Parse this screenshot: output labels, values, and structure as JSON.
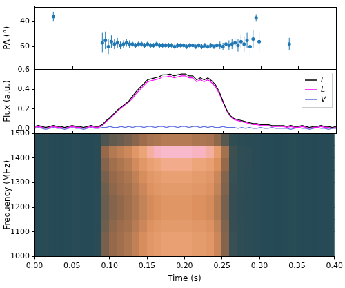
{
  "chart_data": [
    {
      "type": "scatter",
      "y_label": "PA (°)",
      "color": "#1f77b4",
      "marker": "circle",
      "tick_labels": "y",
      "x": [
        0.025,
        0.09,
        0.094,
        0.098,
        0.102,
        0.106,
        0.11,
        0.114,
        0.118,
        0.122,
        0.126,
        0.13,
        0.134,
        0.138,
        0.142,
        0.146,
        0.15,
        0.154,
        0.158,
        0.162,
        0.166,
        0.17,
        0.174,
        0.178,
        0.182,
        0.186,
        0.19,
        0.194,
        0.198,
        0.202,
        0.206,
        0.21,
        0.214,
        0.218,
        0.222,
        0.226,
        0.23,
        0.234,
        0.238,
        0.242,
        0.246,
        0.25,
        0.254,
        0.258,
        0.262,
        0.266,
        0.27,
        0.274,
        0.278,
        0.282,
        0.286,
        0.29,
        0.294,
        0.298,
        0.338
      ],
      "values": [
        -36,
        -57,
        -55,
        -60,
        -56,
        -58,
        -57,
        -59,
        -58,
        -57,
        -58,
        -58,
        -59,
        -58,
        -58,
        -59,
        -58,
        -59,
        -59,
        -58,
        -59,
        -59,
        -59,
        -59,
        -59,
        -60,
        -59,
        -59,
        -59,
        -60,
        -59,
        -59,
        -60,
        -59,
        -60,
        -59,
        -60,
        -59,
        -60,
        -59,
        -59,
        -60,
        -58,
        -59,
        -58,
        -57,
        -59,
        -56,
        -58,
        -55,
        -60,
        -54,
        -37,
        -56,
        -58
      ],
      "errors": [
        4,
        8,
        7,
        6,
        5,
        4,
        4,
        3,
        3,
        3,
        3,
        2,
        2,
        2,
        2,
        2,
        2,
        2,
        2,
        2,
        2,
        2,
        2,
        2,
        2,
        2,
        2,
        2,
        2,
        2,
        2,
        2,
        2,
        2,
        2,
        2,
        2,
        2,
        2,
        2,
        3,
        3,
        3,
        4,
        4,
        4,
        5,
        5,
        6,
        6,
        7,
        7,
        3,
        8,
        5
      ],
      "xlim": [
        0,
        0.4
      ],
      "xticks": [
        {
          "value": 0,
          "label": "0.00"
        },
        0.05,
        {
          "value": 0.1,
          "label": "0.10"
        },
        0.15,
        {
          "value": 0.2,
          "label": "0.20"
        },
        0.25,
        {
          "value": 0.3,
          "label": "0.30"
        },
        0.35,
        {
          "value": 0.4,
          "label": "0.40"
        }
      ],
      "ylim": [
        -78,
        -28
      ],
      "yticks": [
        {
          "value": -60,
          "label": "−60"
        },
        {
          "value": -40,
          "label": "−40"
        }
      ]
    },
    {
      "type": "line",
      "y_label": "Flux (a.u.)",
      "legend": "upper right",
      "tick_labels": "y",
      "x": [
        0,
        0.005,
        0.01,
        0.015,
        0.02,
        0.025,
        0.03,
        0.035,
        0.04,
        0.045,
        0.05,
        0.055,
        0.06,
        0.065,
        0.07,
        0.075,
        0.08,
        0.085,
        0.09,
        0.095,
        0.1,
        0.105,
        0.11,
        0.115,
        0.12,
        0.125,
        0.13,
        0.135,
        0.14,
        0.145,
        0.15,
        0.155,
        0.16,
        0.165,
        0.17,
        0.175,
        0.18,
        0.185,
        0.19,
        0.195,
        0.2,
        0.205,
        0.21,
        0.215,
        0.22,
        0.225,
        0.23,
        0.235,
        0.24,
        0.245,
        0.25,
        0.255,
        0.26,
        0.265,
        0.27,
        0.275,
        0.28,
        0.285,
        0.29,
        0.295,
        0.3,
        0.305,
        0.31,
        0.315,
        0.32,
        0.325,
        0.33,
        0.335,
        0.34,
        0.345,
        0.35,
        0.355,
        0.36,
        0.365,
        0.37,
        0.375,
        0.38,
        0.385,
        0.39,
        0.395,
        0.4
      ],
      "series": [
        {
          "name": "I",
          "color": "#000000",
          "values": [
            0.02,
            0.03,
            0.02,
            0.01,
            0.02,
            0.03,
            0.02,
            0.02,
            0.01,
            0.02,
            0.03,
            0.02,
            0.02,
            0.01,
            0.02,
            0.03,
            0.02,
            0.02,
            0.04,
            0.08,
            0.11,
            0.15,
            0.19,
            0.22,
            0.25,
            0.28,
            0.33,
            0.38,
            0.42,
            0.46,
            0.5,
            0.51,
            0.52,
            0.53,
            0.55,
            0.55,
            0.56,
            0.54,
            0.55,
            0.56,
            0.56,
            0.54,
            0.54,
            0.5,
            0.52,
            0.5,
            0.52,
            0.49,
            0.45,
            0.38,
            0.28,
            0.19,
            0.13,
            0.1,
            0.09,
            0.08,
            0.07,
            0.06,
            0.05,
            0.05,
            0.04,
            0.04,
            0.04,
            0.03,
            0.03,
            0.03,
            0.03,
            0.02,
            0.03,
            0.02,
            0.02,
            0.03,
            0.02,
            0.01,
            0.02,
            0.02,
            0.03,
            0.02,
            0.02,
            0.01,
            0.02
          ]
        },
        {
          "name": "L",
          "color": "#ff00ff",
          "values": [
            0.01,
            0.02,
            0.01,
            0,
            0.01,
            0.02,
            0.01,
            0.01,
            0,
            0.01,
            0.02,
            0.01,
            0.01,
            0,
            0.01,
            0.02,
            0.01,
            0.01,
            0.03,
            0.07,
            0.1,
            0.14,
            0.18,
            0.21,
            0.24,
            0.27,
            0.31,
            0.36,
            0.4,
            0.44,
            0.48,
            0.49,
            0.5,
            0.51,
            0.53,
            0.53,
            0.54,
            0.52,
            0.53,
            0.54,
            0.54,
            0.52,
            0.52,
            0.48,
            0.5,
            0.48,
            0.5,
            0.47,
            0.43,
            0.36,
            0.27,
            0.18,
            0.12,
            0.09,
            0.08,
            0.07,
            0.06,
            0.05,
            0.04,
            0.04,
            0.03,
            0.03,
            0.03,
            0.02,
            0.02,
            0.02,
            0.02,
            0.01,
            0.02,
            0.01,
            0.01,
            0.02,
            0.01,
            0,
            0.01,
            0.01,
            0.02,
            0.01,
            0.01,
            0,
            0.01
          ]
        },
        {
          "name": "V",
          "color": "#5f6fe0",
          "values": [
            0,
            0.01,
            0,
            -0.01,
            0,
            0.01,
            0,
            0,
            -0.01,
            0,
            0.01,
            0,
            0,
            -0.01,
            0,
            0.01,
            0,
            0,
            0.01,
            0.01,
            0.02,
            0.01,
            0.01,
            0.02,
            0.01,
            0.02,
            0.01,
            0.02,
            0.02,
            0.01,
            0.02,
            0.02,
            0.01,
            0.02,
            0.02,
            0.01,
            0.02,
            0.02,
            0.01,
            0.02,
            0.02,
            0.01,
            0.02,
            0.02,
            0.01,
            0.02,
            0.01,
            0.02,
            0.01,
            0.01,
            0.02,
            0.01,
            0.01,
            0.01,
            0,
            0.01,
            0,
            0.01,
            0,
            0,
            0.01,
            0,
            0,
            0.01,
            0,
            0,
            0,
            0,
            -0.01,
            0,
            0.01,
            0,
            0,
            -0.01,
            0,
            0.01,
            0,
            0,
            -0.01,
            0,
            0
          ]
        }
      ],
      "xlim": [
        0,
        0.4
      ],
      "xticks": [
        {
          "value": 0,
          "label": "0.00"
        },
        0.05,
        {
          "value": 0.1,
          "label": "0.10"
        },
        0.15,
        {
          "value": 0.2,
          "label": "0.20"
        },
        0.25,
        {
          "value": 0.3,
          "label": "0.30"
        },
        0.35,
        {
          "value": 0.4,
          "label": "0.40"
        }
      ],
      "ylim": [
        -0.05,
        0.61
      ],
      "yticks": [
        {
          "value": 0,
          "label": "0.0"
        },
        0.2,
        0.4,
        0.6
      ]
    },
    {
      "type": "heatmap",
      "x_label": "Time (s)",
      "y_label": "Frequency (MHz)",
      "x": [
        0.005,
        0.015,
        0.025,
        0.035,
        0.045,
        0.055,
        0.065,
        0.075,
        0.085,
        0.095,
        0.105,
        0.115,
        0.125,
        0.135,
        0.145,
        0.155,
        0.165,
        0.175,
        0.185,
        0.195,
        0.205,
        0.215,
        0.225,
        0.235,
        0.245,
        0.255,
        0.265,
        0.275,
        0.285,
        0.295,
        0.305,
        0.315,
        0.325,
        0.335,
        0.345,
        0.355,
        0.365,
        0.375,
        0.385,
        0.395
      ],
      "y": [
        1025,
        1075,
        1125,
        1175,
        1225,
        1275,
        1325,
        1375,
        1425,
        1475
      ],
      "cells": [
        [
          0.05,
          0.06,
          0.05,
          0.04,
          0.05,
          0.06,
          0.05,
          0.05,
          0.06,
          0.28,
          0.35,
          0.39,
          0.43,
          0.5,
          0.58,
          0.65,
          0.69,
          0.73,
          0.73,
          0.73,
          0.73,
          0.69,
          0.69,
          0.65,
          0.54,
          0.31,
          0.13,
          0.09,
          0.07,
          0.06,
          0.05,
          0.05,
          0.04,
          0.05,
          0.06,
          0.05,
          0.05,
          0.04,
          0.05,
          0.05
        ],
        [
          0.05,
          0.06,
          0.05,
          0.04,
          0.05,
          0.06,
          0.05,
          0.05,
          0.06,
          0.28,
          0.35,
          0.39,
          0.43,
          0.5,
          0.58,
          0.65,
          0.69,
          0.73,
          0.73,
          0.73,
          0.73,
          0.69,
          0.69,
          0.65,
          0.54,
          0.31,
          0.13,
          0.09,
          0.07,
          0.06,
          0.05,
          0.05,
          0.04,
          0.05,
          0.06,
          0.05,
          0.05,
          0.04,
          0.05,
          0.05
        ],
        [
          0.05,
          0.06,
          0.05,
          0.04,
          0.05,
          0.06,
          0.05,
          0.05,
          0.06,
          0.26,
          0.33,
          0.37,
          0.4,
          0.47,
          0.54,
          0.61,
          0.65,
          0.68,
          0.68,
          0.68,
          0.68,
          0.65,
          0.65,
          0.61,
          0.51,
          0.3,
          0.12,
          0.09,
          0.07,
          0.06,
          0.05,
          0.05,
          0.04,
          0.05,
          0.06,
          0.05,
          0.05,
          0.04,
          0.05,
          0.05
        ],
        [
          0.05,
          0.06,
          0.05,
          0.04,
          0.05,
          0.06,
          0.05,
          0.05,
          0.06,
          0.25,
          0.31,
          0.34,
          0.38,
          0.44,
          0.51,
          0.57,
          0.6,
          0.64,
          0.64,
          0.64,
          0.64,
          0.6,
          0.6,
          0.57,
          0.47,
          0.28,
          0.12,
          0.08,
          0.07,
          0.06,
          0.05,
          0.05,
          0.04,
          0.05,
          0.06,
          0.05,
          0.05,
          0.04,
          0.05,
          0.05
        ],
        [
          0.05,
          0.06,
          0.05,
          0.04,
          0.05,
          0.06,
          0.05,
          0.05,
          0.06,
          0.25,
          0.31,
          0.34,
          0.38,
          0.44,
          0.51,
          0.57,
          0.6,
          0.64,
          0.64,
          0.64,
          0.64,
          0.6,
          0.6,
          0.57,
          0.47,
          0.28,
          0.12,
          0.08,
          0.07,
          0.06,
          0.05,
          0.05,
          0.04,
          0.05,
          0.06,
          0.05,
          0.05,
          0.04,
          0.05,
          0.05
        ],
        [
          0.05,
          0.06,
          0.05,
          0.04,
          0.05,
          0.06,
          0.05,
          0.05,
          0.06,
          0.26,
          0.33,
          0.37,
          0.4,
          0.47,
          0.54,
          0.61,
          0.65,
          0.68,
          0.68,
          0.68,
          0.68,
          0.65,
          0.65,
          0.61,
          0.51,
          0.3,
          0.12,
          0.09,
          0.07,
          0.06,
          0.05,
          0.05,
          0.04,
          0.05,
          0.06,
          0.05,
          0.05,
          0.04,
          0.05,
          0.05
        ],
        [
          0.05,
          0.06,
          0.05,
          0.04,
          0.05,
          0.06,
          0.05,
          0.05,
          0.06,
          0.28,
          0.35,
          0.39,
          0.43,
          0.5,
          0.58,
          0.65,
          0.69,
          0.73,
          0.73,
          0.73,
          0.73,
          0.69,
          0.69,
          0.65,
          0.54,
          0.31,
          0.13,
          0.09,
          0.07,
          0.06,
          0.05,
          0.05,
          0.04,
          0.05,
          0.06,
          0.05,
          0.05,
          0.04,
          0.05,
          0.05
        ],
        [
          0.05,
          0.06,
          0.05,
          0.04,
          0.05,
          0.06,
          0.05,
          0.05,
          0.06,
          0.31,
          0.39,
          0.43,
          0.48,
          0.56,
          0.65,
          0.73,
          0.77,
          0.82,
          0.82,
          0.82,
          0.82,
          0.77,
          0.77,
          0.73,
          0.6,
          0.35,
          0.14,
          0.09,
          0.08,
          0.06,
          0.05,
          0.05,
          0.04,
          0.05,
          0.06,
          0.05,
          0.05,
          0.04,
          0.05,
          0.05
        ],
        [
          0.05,
          0.06,
          0.05,
          0.04,
          0.05,
          0.06,
          0.05,
          0.05,
          0.06,
          0.35,
          0.45,
          0.5,
          0.55,
          0.65,
          0.75,
          0.85,
          0.9,
          0.95,
          0.95,
          0.95,
          0.95,
          0.9,
          0.9,
          0.85,
          0.7,
          0.4,
          0.15,
          0.1,
          0.08,
          0.06,
          0.05,
          0.05,
          0.04,
          0.05,
          0.06,
          0.05,
          0.05,
          0.04,
          0.05,
          0.05
        ],
        [
          0.05,
          0.06,
          0.05,
          0.04,
          0.05,
          0.06,
          0.05,
          0.05,
          0.06,
          0.19,
          0.23,
          0.25,
          0.28,
          0.32,
          0.37,
          0.41,
          0.43,
          0.46,
          0.46,
          0.46,
          0.46,
          0.43,
          0.43,
          0.41,
          0.34,
          0.21,
          0.1,
          0.07,
          0.06,
          0.06,
          0.05,
          0.05,
          0.04,
          0.05,
          0.06,
          0.05,
          0.05,
          0.04,
          0.05,
          0.05
        ]
      ],
      "xlim": [
        0,
        0.4
      ],
      "xticks": [
        {
          "value": 0,
          "label": "0.00"
        },
        0.05,
        {
          "value": 0.1,
          "label": "0.10"
        },
        0.15,
        {
          "value": 0.2,
          "label": "0.20"
        },
        0.25,
        {
          "value": 0.3,
          "label": "0.30"
        },
        0.35,
        {
          "value": 0.4,
          "label": "0.40"
        }
      ],
      "ylim": [
        1000,
        1500
      ],
      "yticks": [
        1000,
        1100,
        1200,
        1300,
        1400,
        1500
      ]
    }
  ]
}
